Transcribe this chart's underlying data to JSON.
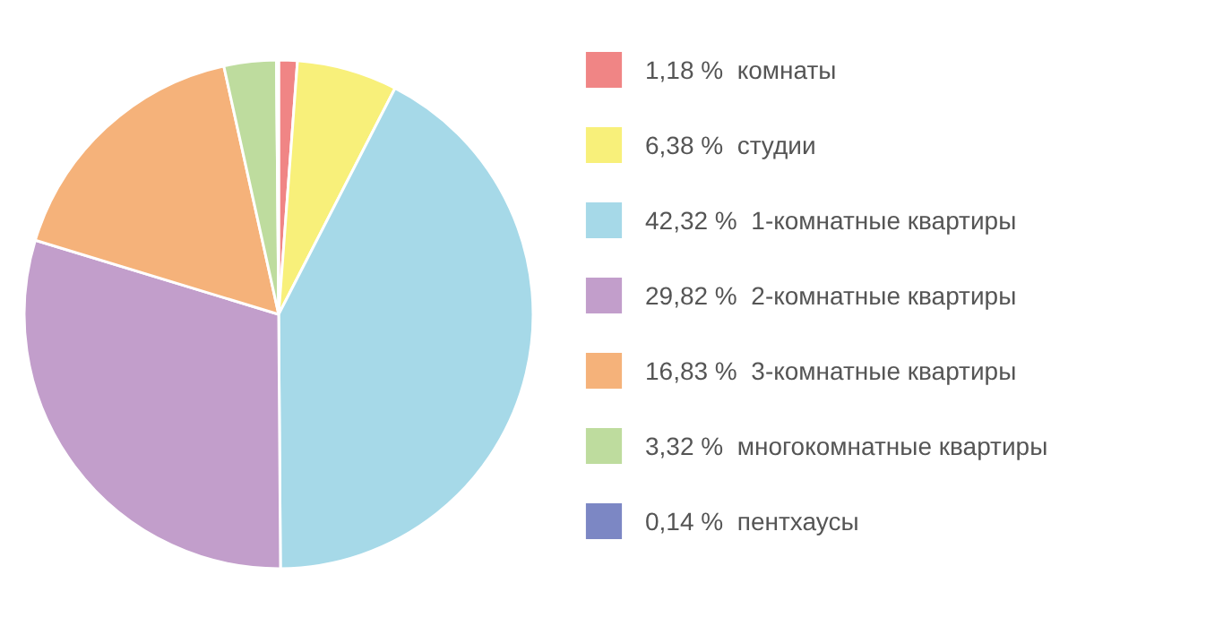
{
  "chart_data": {
    "type": "pie",
    "categories": [
      "комнаты",
      "студии",
      "1-комнатные квартиры",
      "2-комнатные квартиры",
      "3-комнатные квартиры",
      "многокомнатные квартиры",
      "пентхаусы"
    ],
    "values": [
      1.18,
      6.38,
      42.32,
      29.82,
      16.83,
      3.32,
      0.14
    ],
    "value_labels": [
      "1,18 %",
      "6,38 %",
      "42,32 %",
      "29,82 %",
      "16,83 %",
      "3,32 %",
      "0,14 %"
    ],
    "colors": [
      "#f08585",
      "#f8f07a",
      "#a6d9e8",
      "#c29ecb",
      "#f5b27a",
      "#bedc9e",
      "#7c87c4"
    ],
    "legend": "right"
  }
}
